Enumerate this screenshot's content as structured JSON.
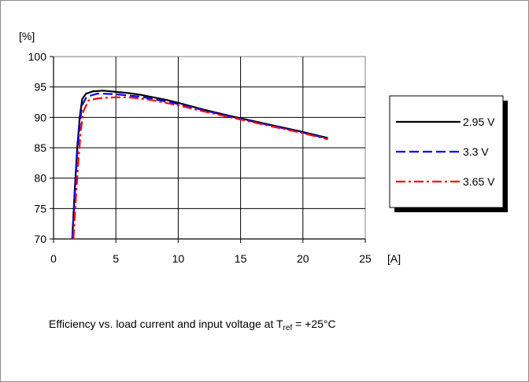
{
  "chart_data": {
    "type": "line",
    "x_unit": "[A]",
    "y_unit": "[%]",
    "xlim": [
      0,
      25
    ],
    "ylim": [
      70,
      100
    ],
    "x_ticks": [
      0,
      5,
      10,
      15,
      20,
      25
    ],
    "y_ticks": [
      70,
      75,
      80,
      85,
      90,
      95,
      100
    ],
    "grid": true,
    "legend_position": "right",
    "series": [
      {
        "name": "2.95 V",
        "color": "#000000",
        "dash": "solid",
        "points": [
          [
            1.5,
            70
          ],
          [
            1.7,
            78
          ],
          [
            1.9,
            85
          ],
          [
            2.1,
            90
          ],
          [
            2.3,
            93
          ],
          [
            2.6,
            93.9
          ],
          [
            3.2,
            94.3
          ],
          [
            4,
            94.4
          ],
          [
            5,
            94.2
          ],
          [
            6,
            94
          ],
          [
            7,
            93.7
          ],
          [
            8,
            93.3
          ],
          [
            9,
            92.9
          ],
          [
            10,
            92.4
          ],
          [
            12,
            91.3
          ],
          [
            14,
            90.3
          ],
          [
            16,
            89.4
          ],
          [
            18,
            88.5
          ],
          [
            20,
            87.6
          ],
          [
            22,
            86.6
          ]
        ]
      },
      {
        "name": "3.3 V",
        "color": "#0000ff",
        "dash": "dashed",
        "points": [
          [
            1.5,
            70
          ],
          [
            1.7,
            77
          ],
          [
            1.9,
            84
          ],
          [
            2.1,
            89
          ],
          [
            2.3,
            92
          ],
          [
            2.6,
            93.2
          ],
          [
            3,
            93.6
          ],
          [
            3.5,
            93.9
          ],
          [
            4,
            93.9
          ],
          [
            5,
            93.8
          ],
          [
            6,
            93.6
          ],
          [
            7,
            93.4
          ],
          [
            8,
            93
          ],
          [
            9,
            92.6
          ],
          [
            10,
            92.2
          ],
          [
            12,
            91.2
          ],
          [
            14,
            90.2
          ],
          [
            16,
            89.3
          ],
          [
            18,
            88.4
          ],
          [
            20,
            87.5
          ],
          [
            22,
            86.5
          ]
        ]
      },
      {
        "name": "3.65 V",
        "color": "#ff0000",
        "dash": "dashdot",
        "points": [
          [
            1.6,
            70
          ],
          [
            1.8,
            77
          ],
          [
            2,
            83
          ],
          [
            2.2,
            88
          ],
          [
            2.4,
            91
          ],
          [
            2.8,
            92.8
          ],
          [
            3.5,
            93.1
          ],
          [
            4,
            93.2
          ],
          [
            5,
            93.3
          ],
          [
            6,
            93.3
          ],
          [
            7,
            93.1
          ],
          [
            8,
            92.8
          ],
          [
            9,
            92.4
          ],
          [
            10,
            92
          ],
          [
            12,
            91
          ],
          [
            14,
            90.1
          ],
          [
            16,
            89.2
          ],
          [
            18,
            88.3
          ],
          [
            20,
            87.4
          ],
          [
            22,
            86.4
          ]
        ]
      }
    ]
  },
  "caption": {
    "text": "Efficiency vs. load current and input voltage at T",
    "sub": "ref",
    "suffix": " = +25°C"
  }
}
